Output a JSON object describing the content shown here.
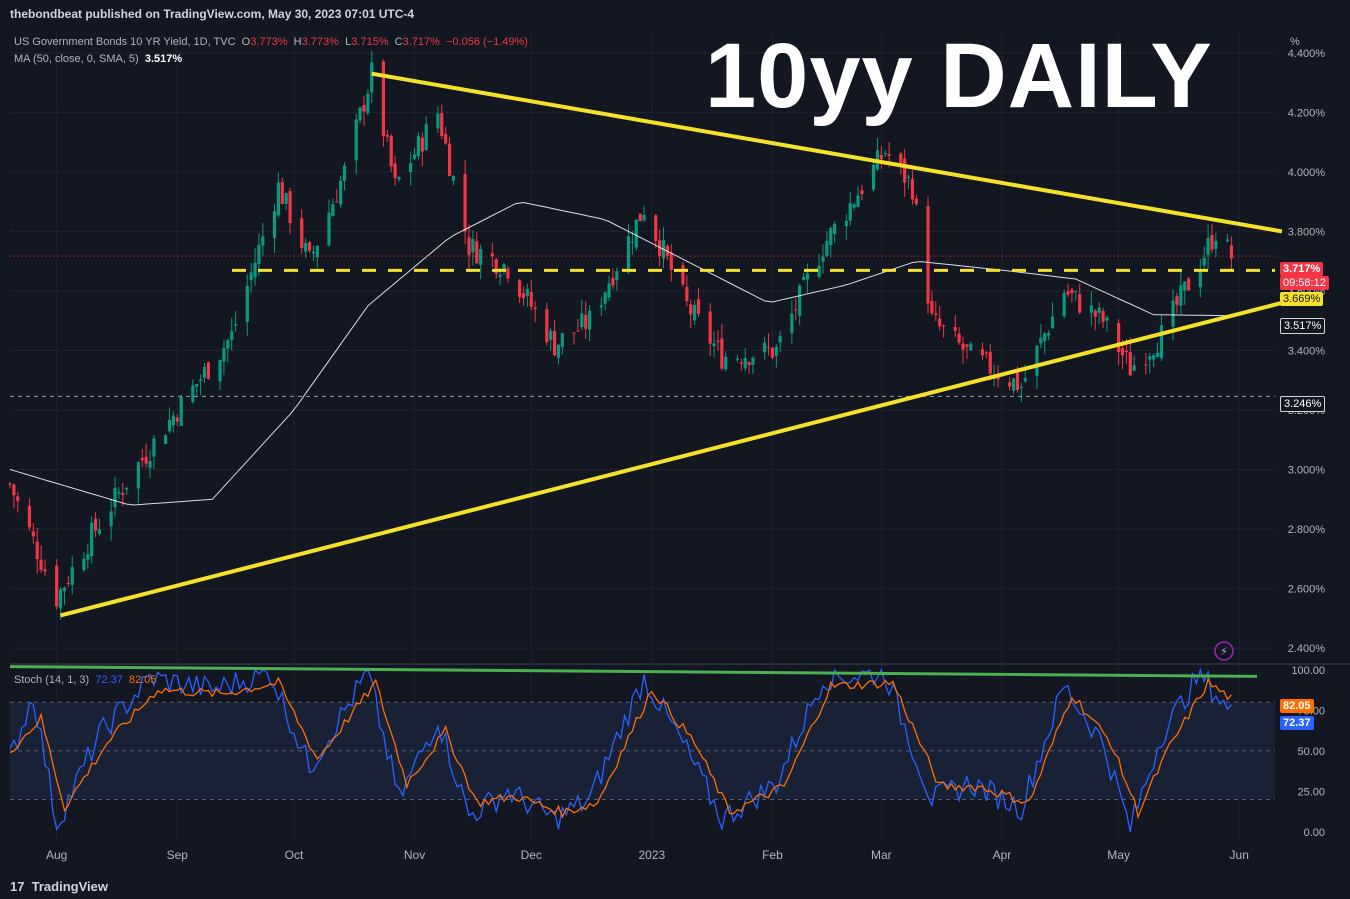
{
  "header": {
    "publish_line": "thebondbeat published on TradingView.com, May 30, 2023 07:01 UTC-4"
  },
  "legend": {
    "symbol": "US Government Bonds 10 YR Yield, 1D, TVC",
    "o_label": "O",
    "o_value": "3.773%",
    "h_label": "H",
    "h_value": "3.773%",
    "l_label": "L",
    "l_value": "3.715%",
    "c_label": "C",
    "c_value": "3.717%",
    "change": "−0.056 (−1.49%)",
    "ma_label": "MA (50, close, 0, SMA, 5)",
    "ma_value": "3.517%"
  },
  "title": "10yy DAILY",
  "price_axis_unit": "%",
  "tags": {
    "last_price": "3.717%",
    "countdown": "09:58:12",
    "dashed_level": "3.669%",
    "ma_value": "3.517%",
    "support_level": "3.246%",
    "stoch_k": "72.37",
    "stoch_d": "82.05"
  },
  "stoch_legend": {
    "label": "Stoch (14, 1, 3)",
    "k": "72.37",
    "d": "82.05"
  },
  "footer": {
    "brand": "TradingView"
  },
  "colors": {
    "background": "#131722",
    "up": "#089981",
    "down": "#f23645",
    "trendline": "#f5e12c",
    "ma": "#ffffff",
    "stoch_k": "#2962ff",
    "stoch_d": "#ff6d00",
    "stoch_trend": "#4caf50"
  },
  "chart_data": [
    {
      "type": "line",
      "name": "price_panel",
      "x_ticks": [
        "Aug",
        "Sep",
        "Oct",
        "Nov",
        "Dec",
        "2023",
        "Feb",
        "Mar",
        "Apr",
        "May",
        "Jun"
      ],
      "y_ticks": [
        "2.400%",
        "2.600%",
        "2.800%",
        "3.000%",
        "3.200%",
        "3.400%",
        "3.600%",
        "3.800%",
        "4.000%",
        "4.200%",
        "4.400%"
      ],
      "ylim": [
        2.35,
        4.47
      ],
      "close_anchors": [
        {
          "x": "2022-07-20",
          "y": 2.95
        },
        {
          "x": "2022-08-01",
          "y": 2.57
        },
        {
          "x": "2022-08-10",
          "y": 2.78
        },
        {
          "x": "2022-08-20",
          "y": 2.98
        },
        {
          "x": "2022-09-01",
          "y": 3.2
        },
        {
          "x": "2022-09-15",
          "y": 3.45
        },
        {
          "x": "2022-09-27",
          "y": 3.95
        },
        {
          "x": "2022-10-05",
          "y": 3.7
        },
        {
          "x": "2022-10-14",
          "y": 4.0
        },
        {
          "x": "2022-10-21",
          "y": 4.33
        },
        {
          "x": "2022-10-27",
          "y": 3.95
        },
        {
          "x": "2022-11-07",
          "y": 4.2
        },
        {
          "x": "2022-11-15",
          "y": 3.75
        },
        {
          "x": "2022-11-25",
          "y": 3.68
        },
        {
          "x": "2022-12-07",
          "y": 3.42
        },
        {
          "x": "2022-12-16",
          "y": 3.5
        },
        {
          "x": "2022-12-30",
          "y": 3.88
        },
        {
          "x": "2023-01-10",
          "y": 3.55
        },
        {
          "x": "2023-01-19",
          "y": 3.38
        },
        {
          "x": "2023-02-02",
          "y": 3.4
        },
        {
          "x": "2023-02-14",
          "y": 3.75
        },
        {
          "x": "2023-03-02",
          "y": 4.07
        },
        {
          "x": "2023-03-09",
          "y": 3.95
        },
        {
          "x": "2023-03-14",
          "y": 3.5
        },
        {
          "x": "2023-03-24",
          "y": 3.38
        },
        {
          "x": "2023-04-06",
          "y": 3.28
        },
        {
          "x": "2023-04-17",
          "y": 3.6
        },
        {
          "x": "2023-04-27",
          "y": 3.5
        },
        {
          "x": "2023-05-04",
          "y": 3.34
        },
        {
          "x": "2023-05-12",
          "y": 3.45
        },
        {
          "x": "2023-05-22",
          "y": 3.7
        },
        {
          "x": "2023-05-26",
          "y": 3.8
        },
        {
          "x": "2023-05-30",
          "y": 3.717
        }
      ],
      "ma_anchors": [
        {
          "x": "2022-07-20",
          "y": 3.0
        },
        {
          "x": "2022-08-20",
          "y": 2.88
        },
        {
          "x": "2022-09-10",
          "y": 2.9
        },
        {
          "x": "2022-10-01",
          "y": 3.2
        },
        {
          "x": "2022-10-20",
          "y": 3.55
        },
        {
          "x": "2022-11-10",
          "y": 3.78
        },
        {
          "x": "2022-11-28",
          "y": 3.9
        },
        {
          "x": "2022-12-20",
          "y": 3.84
        },
        {
          "x": "2023-01-10",
          "y": 3.7
        },
        {
          "x": "2023-01-31",
          "y": 3.56
        },
        {
          "x": "2023-02-20",
          "y": 3.62
        },
        {
          "x": "2023-03-10",
          "y": 3.7
        },
        {
          "x": "2023-04-01",
          "y": 3.67
        },
        {
          "x": "2023-04-20",
          "y": 3.64
        },
        {
          "x": "2023-05-10",
          "y": 3.52
        },
        {
          "x": "2023-05-30",
          "y": 3.517
        }
      ],
      "trendlines": [
        {
          "name": "resistance",
          "from": {
            "x": "2022-10-21",
            "y": 4.33
          },
          "to": {
            "x": "2023-06-12",
            "y": 3.8
          }
        },
        {
          "name": "support",
          "from": {
            "x": "2022-08-02",
            "y": 2.51
          },
          "to": {
            "x": "2023-06-12",
            "y": 3.56
          }
        }
      ],
      "horizontal_levels": [
        {
          "name": "dashed-yellow",
          "y": 3.669
        },
        {
          "name": "dashed-support",
          "y": 3.246
        },
        {
          "name": "last-price",
          "y": 3.717
        }
      ]
    },
    {
      "type": "line",
      "name": "stochastic_panel",
      "y_ticks": [
        "0.00",
        "25.00",
        "50.00",
        "75.00",
        "100.00"
      ],
      "ylim": [
        -5,
        103
      ],
      "k_anchors": [
        {
          "x": "2022-07-20",
          "y": 45
        },
        {
          "x": "2022-07-26",
          "y": 85
        },
        {
          "x": "2022-08-01",
          "y": 5
        },
        {
          "x": "2022-08-12",
          "y": 60
        },
        {
          "x": "2022-08-25",
          "y": 95
        },
        {
          "x": "2022-09-10",
          "y": 88
        },
        {
          "x": "2022-09-25",
          "y": 98
        },
        {
          "x": "2022-10-05",
          "y": 40
        },
        {
          "x": "2022-10-20",
          "y": 98
        },
        {
          "x": "2022-10-28",
          "y": 20
        },
        {
          "x": "2022-11-07",
          "y": 70
        },
        {
          "x": "2022-11-15",
          "y": 10
        },
        {
          "x": "2022-11-25",
          "y": 25
        },
        {
          "x": "2022-12-07",
          "y": 8
        },
        {
          "x": "2022-12-16",
          "y": 20
        },
        {
          "x": "2022-12-30",
          "y": 95
        },
        {
          "x": "2023-01-10",
          "y": 50
        },
        {
          "x": "2023-01-19",
          "y": 8
        },
        {
          "x": "2023-02-02",
          "y": 30
        },
        {
          "x": "2023-02-14",
          "y": 95
        },
        {
          "x": "2023-03-02",
          "y": 98
        },
        {
          "x": "2023-03-14",
          "y": 20
        },
        {
          "x": "2023-03-24",
          "y": 30
        },
        {
          "x": "2023-04-06",
          "y": 15
        },
        {
          "x": "2023-04-17",
          "y": 90
        },
        {
          "x": "2023-04-27",
          "y": 55
        },
        {
          "x": "2023-05-04",
          "y": 2
        },
        {
          "x": "2023-05-12",
          "y": 60
        },
        {
          "x": "2023-05-22",
          "y": 98
        },
        {
          "x": "2023-05-30",
          "y": 72.37
        }
      ],
      "d_anchors": [
        {
          "x": "2022-07-20",
          "y": 50
        },
        {
          "x": "2022-07-28",
          "y": 70
        },
        {
          "x": "2022-08-03",
          "y": 15
        },
        {
          "x": "2022-08-14",
          "y": 55
        },
        {
          "x": "2022-08-27",
          "y": 88
        },
        {
          "x": "2022-09-12",
          "y": 85
        },
        {
          "x": "2022-09-27",
          "y": 92
        },
        {
          "x": "2022-10-07",
          "y": 45
        },
        {
          "x": "2022-10-22",
          "y": 92
        },
        {
          "x": "2022-10-30",
          "y": 30
        },
        {
          "x": "2022-11-09",
          "y": 62
        },
        {
          "x": "2022-11-17",
          "y": 18
        },
        {
          "x": "2022-11-27",
          "y": 22
        },
        {
          "x": "2022-12-09",
          "y": 12
        },
        {
          "x": "2022-12-18",
          "y": 18
        },
        {
          "x": "2023-01-01",
          "y": 88
        },
        {
          "x": "2023-01-12",
          "y": 55
        },
        {
          "x": "2023-01-21",
          "y": 12
        },
        {
          "x": "2023-02-04",
          "y": 28
        },
        {
          "x": "2023-02-16",
          "y": 90
        },
        {
          "x": "2023-03-04",
          "y": 92
        },
        {
          "x": "2023-03-16",
          "y": 28
        },
        {
          "x": "2023-03-26",
          "y": 28
        },
        {
          "x": "2023-04-08",
          "y": 18
        },
        {
          "x": "2023-04-19",
          "y": 85
        },
        {
          "x": "2023-04-29",
          "y": 55
        },
        {
          "x": "2023-05-06",
          "y": 12
        },
        {
          "x": "2023-05-14",
          "y": 52
        },
        {
          "x": "2023-05-24",
          "y": 92
        },
        {
          "x": "2023-05-30",
          "y": 82.05
        }
      ],
      "bands": {
        "upper": 80,
        "middle": 50,
        "lower": 20
      },
      "trendline": {
        "from": {
          "x": "2022-07-20",
          "y": 102
        },
        "to": {
          "x": "2023-06-12",
          "y": 96
        }
      }
    }
  ]
}
